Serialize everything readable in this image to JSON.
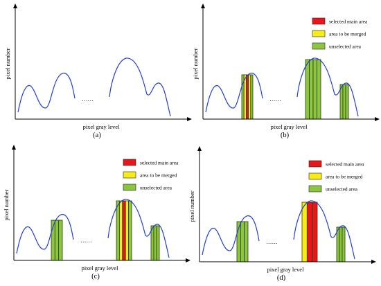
{
  "axes": {
    "xlabel": "pixel gray level",
    "ylabel": "pixel number",
    "ellipsis": "……"
  },
  "legend": [
    {
      "label": "selected main area",
      "color": "#e8161b"
    },
    {
      "label": "area to be merged",
      "color": "#f7ec13"
    },
    {
      "label": "unselected area",
      "color": "#8cc63f"
    }
  ],
  "colors": {
    "curve": "#1f3fd6",
    "stripe": "#2a3a10",
    "axis": "#000000"
  },
  "panels": [
    {
      "caption": "(a)",
      "legend": false,
      "peaks": []
    },
    {
      "caption": "(b)",
      "legend": true,
      "peaks": [
        {
          "peak": 2,
          "bands": [
            "unselected area",
            "area to be merged",
            "selected main area",
            "area to be merged",
            "unselected area"
          ]
        },
        {
          "peak": 3,
          "bands": [
            "unselected area",
            "unselected area",
            "unselected area",
            "unselected area"
          ]
        },
        {
          "peak": 4,
          "bands": [
            "unselected area",
            "unselected area",
            "unselected area"
          ]
        }
      ]
    },
    {
      "caption": "(c)",
      "legend": true,
      "peaks": [
        {
          "peak": 1,
          "bands": [
            "unselected area",
            "unselected area",
            "unselected area"
          ]
        },
        {
          "peak": 3,
          "bands": [
            "unselected area",
            "area to be merged",
            "selected main area",
            "area to be merged",
            "unselected area"
          ]
        },
        {
          "peak": 4,
          "bands": [
            "unselected area",
            "unselected area",
            "unselected area"
          ]
        }
      ]
    },
    {
      "caption": "(d)",
      "legend": true,
      "peaks": [
        {
          "peak": 1,
          "bands": [
            "unselected area",
            "unselected area",
            "unselected area"
          ]
        },
        {
          "peak": 3,
          "bands": [
            "area to be merged",
            "selected main area",
            "selected main area"
          ]
        },
        {
          "peak": 4,
          "bands": [
            "unselected area",
            "unselected area",
            "unselected area"
          ]
        }
      ]
    }
  ]
}
